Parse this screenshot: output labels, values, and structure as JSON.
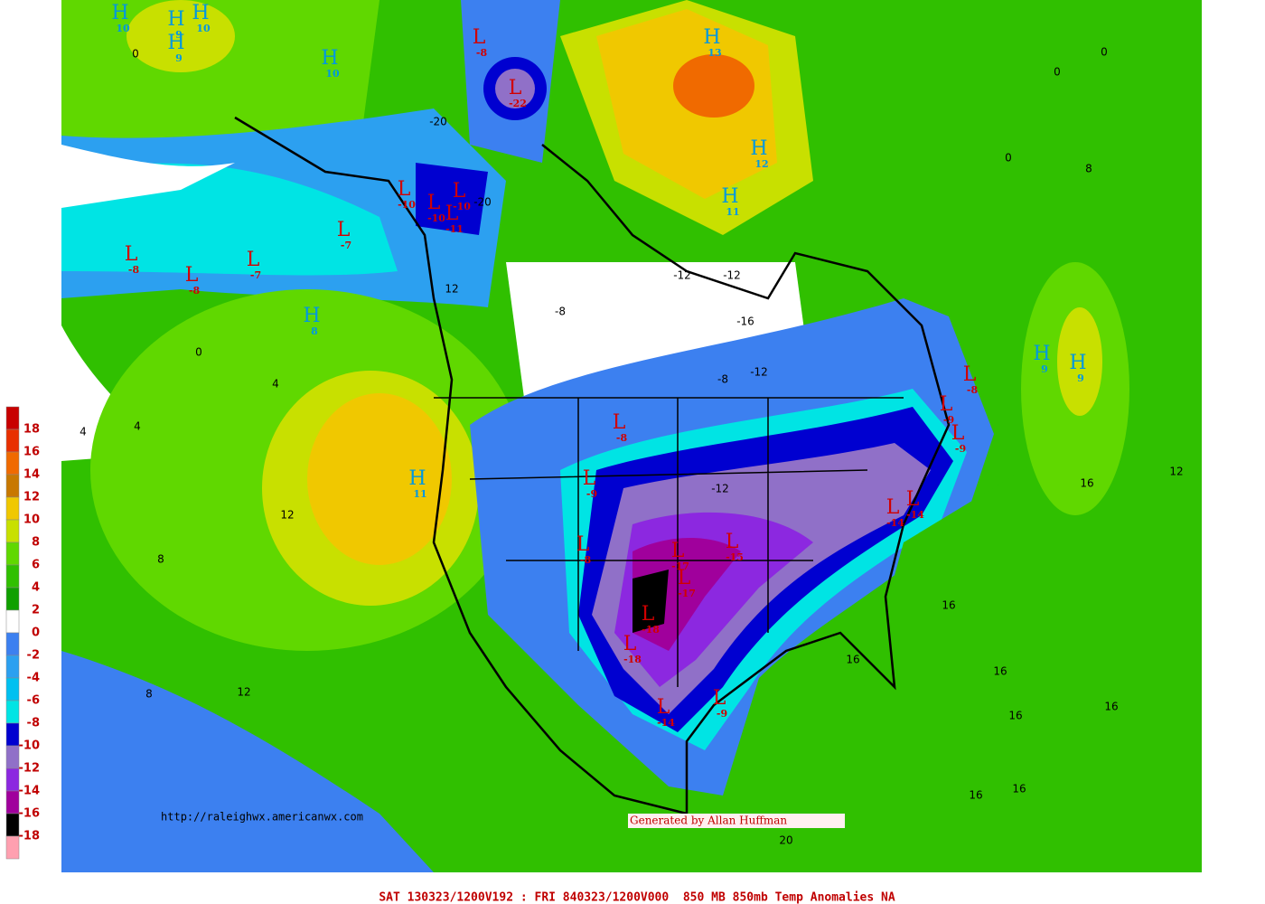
{
  "map": {
    "footer": "SAT 130323/1200V192 : FRI 840323/1200V000  850 MB 850mb Temp Anomalies NA",
    "url": "http://raleighwx.americanwx.com",
    "credit": "Generated by Allan Huffman",
    "scale_labels": [
      18,
      16,
      14,
      12,
      10,
      8,
      6,
      4,
      2,
      0,
      -2,
      -4,
      -6,
      -8,
      -10,
      -12,
      -14,
      -16,
      -18
    ],
    "scale_colors": [
      "#c80000",
      "#e83000",
      "#f06a00",
      "#c87800",
      "#f0c800",
      "#c8e000",
      "#60d800",
      "#30c000",
      "#10a000",
      "#ffffff",
      "#3c80f0",
      "#2ca0f0",
      "#00c0f0",
      "#00e4e4",
      "#0000d0",
      "#9070c8",
      "#8c28e0",
      "#a0009c",
      "#000000",
      "#ffa0b0"
    ],
    "centers": [
      {
        "letter": "H",
        "value": 10
      },
      {
        "letter": "H",
        "value": 9
      },
      {
        "letter": "H",
        "value": 10
      },
      {
        "letter": "H",
        "value": 9
      },
      {
        "letter": "H",
        "value": 10
      },
      {
        "letter": "L",
        "value": -8
      },
      {
        "letter": "L",
        "value": -22
      },
      {
        "letter": "L",
        "value": -10
      },
      {
        "letter": "L",
        "value": -10
      },
      {
        "letter": "L",
        "value": -10
      },
      {
        "letter": "L",
        "value": -11
      },
      {
        "letter": "L",
        "value": -7
      },
      {
        "letter": "L",
        "value": -8
      },
      {
        "letter": "L",
        "value": -8
      },
      {
        "letter": "L",
        "value": -7
      },
      {
        "letter": "H",
        "value": 8
      },
      {
        "letter": "H",
        "value": 11
      },
      {
        "letter": "L",
        "value": -8
      },
      {
        "letter": "L",
        "value": -9
      },
      {
        "letter": "L",
        "value": -8
      },
      {
        "letter": "L",
        "value": -17
      },
      {
        "letter": "L",
        "value": -15
      },
      {
        "letter": "L",
        "value": -17
      },
      {
        "letter": "L",
        "value": -18
      },
      {
        "letter": "L",
        "value": -18
      },
      {
        "letter": "L",
        "value": -14
      },
      {
        "letter": "L",
        "value": -9
      },
      {
        "letter": "L",
        "value": -14
      },
      {
        "letter": "L",
        "value": -14
      },
      {
        "letter": "L",
        "value": -8
      },
      {
        "letter": "L",
        "value": -9
      },
      {
        "letter": "L",
        "value": -9
      },
      {
        "letter": "H",
        "value": 9
      },
      {
        "letter": "H",
        "value": 9
      },
      {
        "letter": "H",
        "value": 11
      },
      {
        "letter": "H",
        "value": 12
      },
      {
        "letter": "H",
        "value": 13
      }
    ],
    "contour_labels": [
      0,
      0,
      4,
      4,
      4,
      12,
      8,
      8,
      12,
      16,
      16,
      16,
      16,
      16,
      16,
      12,
      16,
      16,
      20,
      0,
      8,
      -12,
      -8,
      -16,
      -12,
      -12,
      -8,
      -12,
      -20,
      -20,
      12,
      0,
      0
    ]
  }
}
